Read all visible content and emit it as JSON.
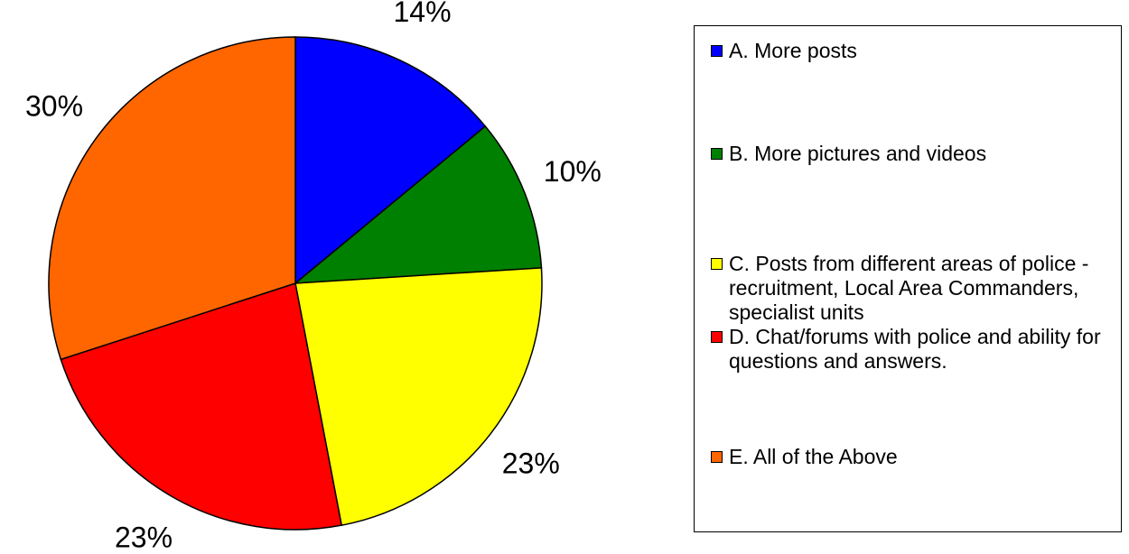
{
  "chart_data": {
    "type": "pie",
    "categories": [
      "A. More posts",
      "B. More pictures and videos",
      "C. Posts from different areas of police - recruitment, Local Area Commanders, specialist units",
      "D. Chat/forums with police and ability for questions and answers.",
      "E. All of the Above"
    ],
    "values": [
      14,
      10,
      23,
      23,
      30
    ],
    "value_labels": [
      "14%",
      "10%",
      "23%",
      "23%",
      "30%"
    ],
    "colors": [
      "#0000ff",
      "#008000",
      "#ffff00",
      "#ff0000",
      "#ff6600"
    ]
  }
}
